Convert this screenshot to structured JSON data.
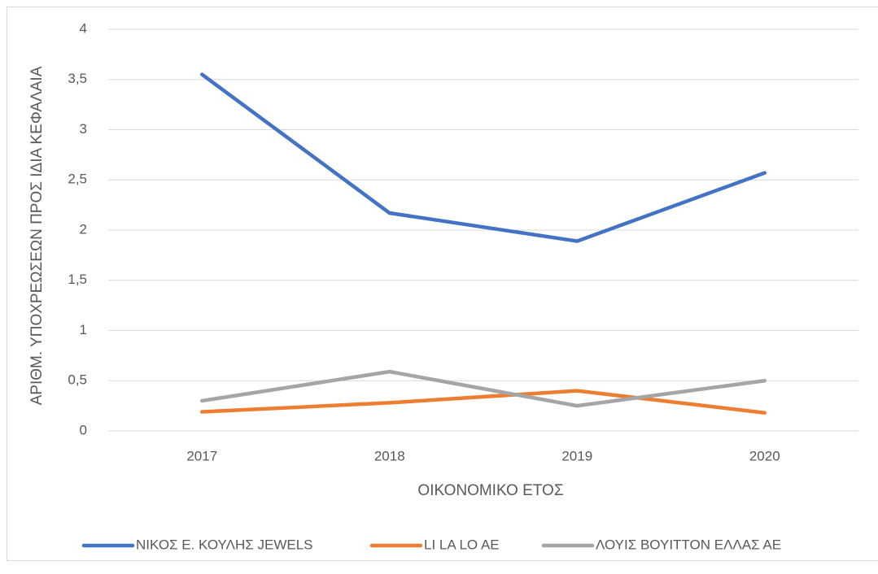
{
  "chart_data": {
    "type": "line",
    "x_label": "ΟΙΚΟΝΟΜΙΚΟ ΕΤΟΣ",
    "y_label": "ΑΡΙΘΜ. ΥΠΟΧΡΕΩΣΕΩΝ ΠΡΟΣ ΙΔΙΑ ΚΕΦΑΛΑΙΑ",
    "categories": [
      "2017",
      "2018",
      "2019",
      "2020"
    ],
    "series": [
      {
        "name": "ΝΙΚΟΣ Ε. ΚΟΥΛΗΣ JEWELS",
        "color": "#4472c4",
        "values": [
          3.55,
          2.17,
          1.89,
          2.57
        ]
      },
      {
        "name": "LI LA LO AE",
        "color": "#ed7d31",
        "values": [
          0.19,
          0.28,
          0.4,
          0.18
        ]
      },
      {
        "name": "ΛΟΥΙΣ ΒΟΥΙΤΤΟΝ ΕΛΛΑΣ ΑΕ",
        "color": "#a5a5a5",
        "values": [
          0.3,
          0.59,
          0.25,
          0.5
        ]
      }
    ],
    "ylim": [
      0,
      4
    ],
    "yticks": [
      0,
      {
        "value": 0.5,
        "label": "0,5"
      },
      1,
      {
        "value": 1.5,
        "label": "1,5"
      },
      2,
      {
        "value": 2.5,
        "label": "2,5"
      },
      3,
      {
        "value": 3.5,
        "label": "3,5"
      },
      4
    ],
    "grid": true,
    "legend": "bottom"
  }
}
